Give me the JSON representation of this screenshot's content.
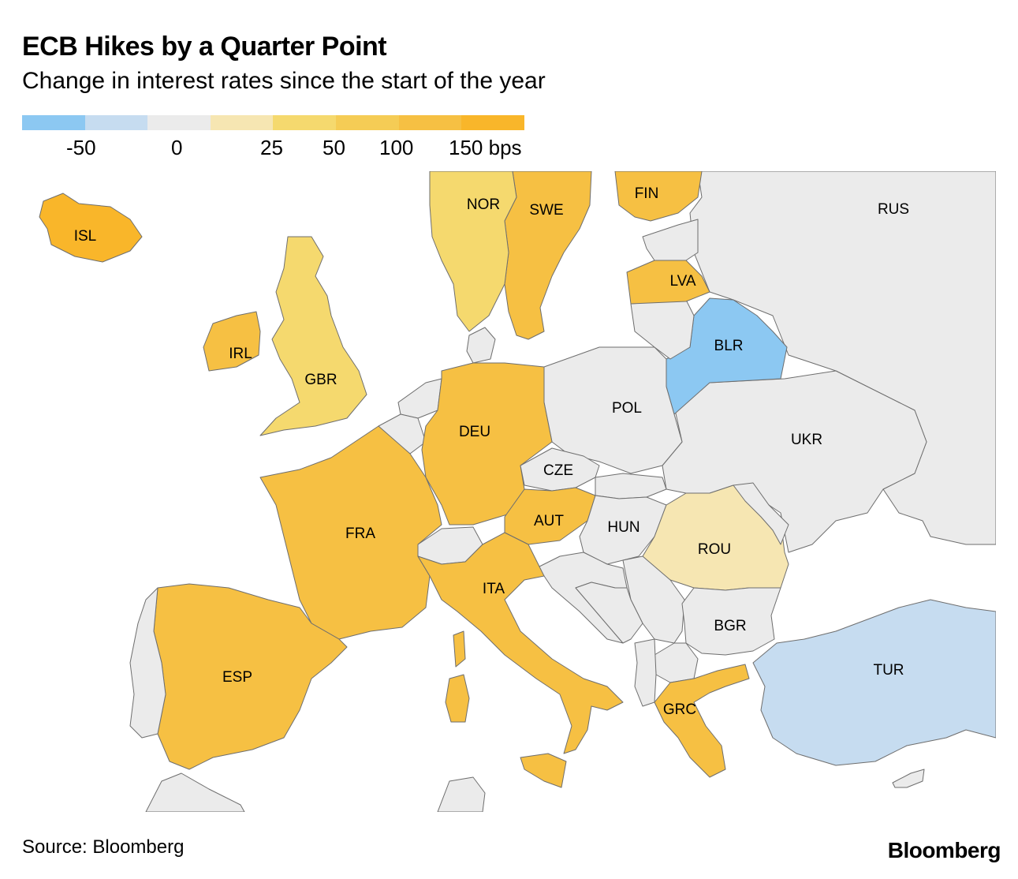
{
  "header": {
    "title": "ECB Hikes by a Quarter Point",
    "subtitle": "Change in interest rates since the start of the year"
  },
  "legend": {
    "swatches": [
      "#8cc8f2",
      "#c6dcf0",
      "#ebebeb",
      "#f6e6b2",
      "#f5d96e",
      "#f5cc55",
      "#f6c043",
      "#f9b62a"
    ],
    "labels": [
      "-50",
      "0",
      "25",
      "50",
      "100",
      "150 bps"
    ],
    "unit": "bps"
  },
  "map": {
    "land_color": "#ebebeb",
    "border_color": "#888888",
    "countries": [
      {
        "code": "ISL",
        "color": "#f9b62a"
      },
      {
        "code": "NOR",
        "color": "#f5d96e"
      },
      {
        "code": "SWE",
        "color": "#f6c043"
      },
      {
        "code": "FIN",
        "color": "#f6c043"
      },
      {
        "code": "RUS",
        "color": "#ebebeb"
      },
      {
        "code": "LVA",
        "color": "#f6c043"
      },
      {
        "code": "IRL",
        "color": "#f6c043"
      },
      {
        "code": "GBR",
        "color": "#f5d96e"
      },
      {
        "code": "BLR",
        "color": "#8cc8f2"
      },
      {
        "code": "DEU",
        "color": "#f6c043"
      },
      {
        "code": "POL",
        "color": "#ebebeb"
      },
      {
        "code": "UKR",
        "color": "#ebebeb"
      },
      {
        "code": "CZE",
        "color": "#ebebeb"
      },
      {
        "code": "AUT",
        "color": "#f6c043"
      },
      {
        "code": "HUN",
        "color": "#ebebeb"
      },
      {
        "code": "FRA",
        "color": "#f6c043"
      },
      {
        "code": "ROU",
        "color": "#f6e6b2"
      },
      {
        "code": "ITA",
        "color": "#f6c043"
      },
      {
        "code": "BGR",
        "color": "#ebebeb"
      },
      {
        "code": "ESP",
        "color": "#f6c043"
      },
      {
        "code": "TUR",
        "color": "#c6dcf0"
      },
      {
        "code": "GRC",
        "color": "#f6c043"
      }
    ]
  },
  "footer": {
    "source": "Source: Bloomberg",
    "brand": "Bloomberg"
  }
}
